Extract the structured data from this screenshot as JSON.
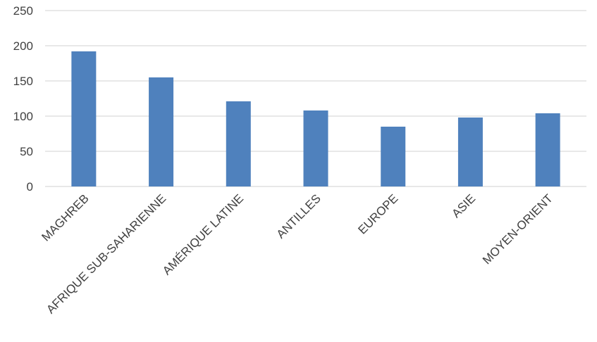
{
  "chart_data": {
    "type": "bar",
    "categories": [
      "MAGHREB",
      "AFRIQUE SUB-SAHARIENNE",
      "AMÉRIQUE LATINE",
      "ANTILLES",
      "EUROPE",
      "ASIE",
      "MOYEN-ORIENT"
    ],
    "values": [
      192,
      155,
      121,
      108,
      85,
      98,
      104
    ],
    "title": "",
    "xlabel": "",
    "ylabel": "",
    "ylim": [
      0,
      250
    ],
    "yticks": [
      "0",
      "50",
      "100",
      "150",
      "200",
      "250"
    ],
    "grid": true,
    "legend": "none",
    "bar_color": "#4F81BD",
    "grid_color": "#D9D9D9"
  }
}
